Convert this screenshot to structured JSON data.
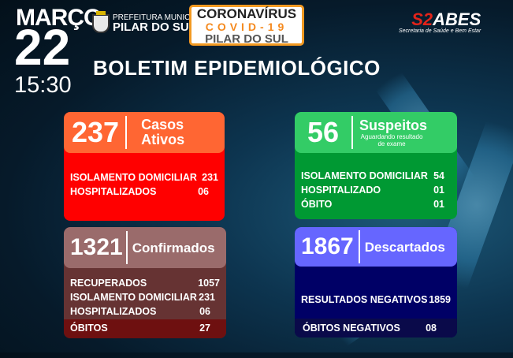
{
  "header": {
    "month": "MARÇO",
    "day": "22",
    "time": "15:30",
    "prefeitura_line1": "PREFEITURA MUNICIPAL",
    "prefeitura_line2": "PILAR DO SUL",
    "banner": {
      "line1": "CORONAVÍRUS",
      "line2": "COVID-19",
      "line3": "PILAR DO SUL"
    },
    "sabes": {
      "logo_red": "S2",
      "logo_white": "ABES",
      "subtitle": "Secretaria de Saúde e Bem Estar"
    },
    "title": "BOLETIM EPIDEMIOLÓGICO"
  },
  "cards": {
    "ativos": {
      "number": "237",
      "label1": "Casos",
      "label2": "Ativos",
      "color_head": "#ff6633",
      "color_body": "#ff0000",
      "rows": [
        {
          "label": "ISOLAMENTO DOMICILIAR",
          "value": "231"
        },
        {
          "label": "HOSPITALIZADOS",
          "value": "06"
        }
      ]
    },
    "suspeitos": {
      "number": "56",
      "label": "Suspeitos",
      "sub": "Aguardando resultado de exame",
      "color_head": "#33cc66",
      "color_body": "#009933",
      "rows": [
        {
          "label": "ISOLAMENTO DOMICILIAR",
          "value": "54"
        },
        {
          "label": "HOSPITALIZADO",
          "value": "01"
        },
        {
          "label": "ÓBITO",
          "value": "01"
        }
      ]
    },
    "confirmados": {
      "number": "1321",
      "label": "Confirmados",
      "color_head": "#9a6b6b",
      "color_body": "#663333",
      "color_footer": "#6e1010",
      "rows": [
        {
          "label": "RECUPERADOS",
          "value": "1057"
        },
        {
          "label": "ISOLAMENTO DOMICILIAR",
          "value": "231"
        },
        {
          "label": "HOSPITALIZADOS",
          "value": "06"
        }
      ],
      "footer": {
        "label": "ÓBITOS",
        "value": "27"
      }
    },
    "descartados": {
      "number": "1867",
      "label": "Descartados",
      "color_head": "#6666ff",
      "color_body": "#000066",
      "color_footer": "#0a0a4a",
      "rows": [
        {
          "label": "RESULTADOS NEGATIVOS",
          "value": "1859"
        }
      ],
      "footer": {
        "label": "ÓBITOS NEGATIVOS",
        "value": "08"
      }
    }
  }
}
